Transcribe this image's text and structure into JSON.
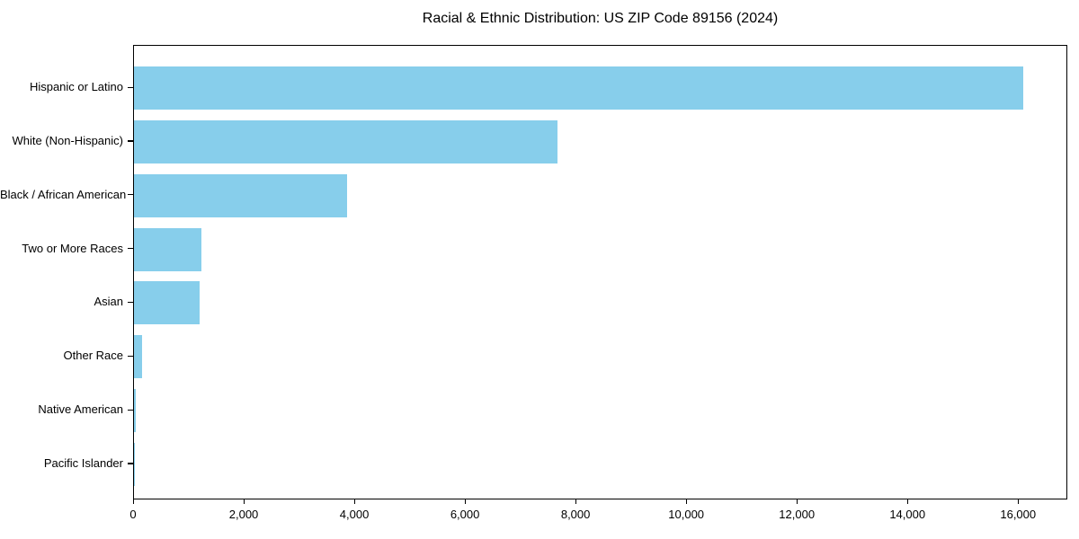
{
  "chart_data": {
    "type": "bar",
    "orientation": "horizontal",
    "title": "Racial & Ethnic Distribution: US ZIP Code 89156 (2024)",
    "xlabel": "",
    "ylabel": "",
    "categories": [
      "Hispanic or Latino",
      "White (Non-Hispanic)",
      "Black / African American",
      "Two or More Races",
      "Asian",
      "Other Race",
      "Native American",
      "Pacific Islander"
    ],
    "values": [
      16080,
      7660,
      3850,
      1220,
      1180,
      150,
      30,
      10
    ],
    "xlim": [
      0,
      16890
    ],
    "xticks": [
      0,
      2000,
      4000,
      6000,
      8000,
      10000,
      12000,
      14000,
      16000
    ],
    "xtick_labels": [
      "0",
      "2,000",
      "4,000",
      "6,000",
      "8,000",
      "10,000",
      "12,000",
      "14,000",
      "16,000"
    ],
    "bar_color": "#87CEEB",
    "spine_color": "#000000",
    "text_color": "#000000",
    "grid": false,
    "legend": null
  }
}
